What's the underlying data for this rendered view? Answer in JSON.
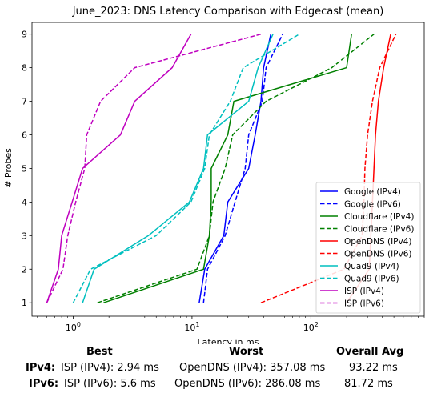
{
  "chart_data": {
    "type": "line",
    "title": "June_2023: DNS Latency Comparison with Edgecast (mean)",
    "xlabel": "Latency in ms",
    "ylabel": "# Probes",
    "xscale": "log",
    "xlim": [
      0.45,
      900
    ],
    "ylim": [
      0.6,
      9.35
    ],
    "yticks": [
      "1",
      "2",
      "3",
      "4",
      "5",
      "6",
      "7",
      "8",
      "9"
    ],
    "xticks": [
      {
        "value": 1,
        "base": "10",
        "exp": "0"
      },
      {
        "value": 10,
        "base": "10",
        "exp": "1"
      },
      {
        "value": 100,
        "base": "10",
        "exp": "2"
      }
    ],
    "legend_position": "lower-right",
    "grid": false,
    "series": [
      {
        "name": "Google (IPv4)",
        "color": "#0000ff",
        "dash": "solid",
        "points": [
          [
            11.5,
            1
          ],
          [
            12.8,
            2
          ],
          [
            18.5,
            3
          ],
          [
            20,
            4
          ],
          [
            30,
            5
          ],
          [
            34,
            6
          ],
          [
            38,
            7
          ],
          [
            40,
            8
          ],
          [
            46,
            9
          ]
        ]
      },
      {
        "name": "Google (IPv6)",
        "color": "#0000ff",
        "dash": "dashed",
        "points": [
          [
            12.5,
            1
          ],
          [
            13.5,
            2
          ],
          [
            19,
            3
          ],
          [
            23,
            4
          ],
          [
            28,
            5
          ],
          [
            30,
            6
          ],
          [
            39,
            7
          ],
          [
            42,
            8
          ],
          [
            58,
            9
          ]
        ]
      },
      {
        "name": "Cloudflare (IPv4)",
        "color": "#008000",
        "dash": "solid",
        "points": [
          [
            1.8,
            1
          ],
          [
            12.5,
            2
          ],
          [
            14,
            3
          ],
          [
            14.5,
            4
          ],
          [
            14.5,
            5
          ],
          [
            20,
            6
          ],
          [
            22.5,
            7
          ],
          [
            200,
            8
          ],
          [
            220,
            9
          ]
        ]
      },
      {
        "name": "Cloudflare (IPv6)",
        "color": "#008000",
        "dash": "dashed",
        "points": [
          [
            1.6,
            1
          ],
          [
            11,
            2
          ],
          [
            14,
            3
          ],
          [
            15,
            4
          ],
          [
            19,
            5
          ],
          [
            22,
            6
          ],
          [
            42,
            7
          ],
          [
            150,
            8
          ],
          [
            340,
            9
          ]
        ]
      },
      {
        "name": "OpenDNS (IPv4)",
        "color": "#ff0000",
        "dash": "solid",
        "points": [
          [
            200,
            1
          ],
          [
            310,
            2
          ],
          [
            320,
            3
          ],
          [
            330,
            4
          ],
          [
            340,
            5
          ],
          [
            350,
            6
          ],
          [
            370,
            7
          ],
          [
            410,
            8
          ],
          [
            470,
            9
          ]
        ]
      },
      {
        "name": "OpenDNS (IPv6)",
        "color": "#ff0000",
        "dash": "dashed",
        "points": [
          [
            38,
            1
          ],
          [
            190,
            2
          ],
          [
            270,
            3
          ],
          [
            280,
            4
          ],
          [
            285,
            5
          ],
          [
            300,
            6
          ],
          [
            330,
            7
          ],
          [
            380,
            8
          ],
          [
            520,
            9
          ]
        ]
      },
      {
        "name": "Quad9 (IPv4)",
        "color": "#00bfbf",
        "dash": "solid",
        "points": [
          [
            1.2,
            1
          ],
          [
            1.5,
            2
          ],
          [
            4.3,
            3
          ],
          [
            9.5,
            4
          ],
          [
            12.5,
            5
          ],
          [
            13.5,
            6
          ],
          [
            30,
            7
          ],
          [
            36,
            8
          ],
          [
            48,
            9
          ]
        ]
      },
      {
        "name": "Quad9 (IPv6)",
        "color": "#00bfbf",
        "dash": "dashed",
        "points": [
          [
            1.0,
            1
          ],
          [
            1.4,
            2
          ],
          [
            5,
            3
          ],
          [
            9.8,
            4
          ],
          [
            12.8,
            5
          ],
          [
            14,
            6
          ],
          [
            21,
            7
          ],
          [
            27,
            8
          ],
          [
            80,
            9
          ]
        ]
      },
      {
        "name": "ISP (IPv4)",
        "color": "#bf00bf",
        "dash": "solid",
        "points": [
          [
            0.6,
            1
          ],
          [
            0.75,
            2
          ],
          [
            0.8,
            3
          ],
          [
            0.98,
            4
          ],
          [
            1.2,
            5
          ],
          [
            2.5,
            6
          ],
          [
            3.3,
            7
          ],
          [
            6.8,
            8
          ],
          [
            9.8,
            9
          ]
        ]
      },
      {
        "name": "ISP (IPv6)",
        "color": "#bf00bf",
        "dash": "dashed",
        "points": [
          [
            0.6,
            1
          ],
          [
            0.82,
            2
          ],
          [
            0.9,
            3
          ],
          [
            1.05,
            4
          ],
          [
            1.25,
            5
          ],
          [
            1.3,
            6
          ],
          [
            1.7,
            7
          ],
          [
            3.3,
            8
          ],
          [
            38,
            9
          ]
        ]
      }
    ]
  },
  "stats": {
    "headers": {
      "best": "Best",
      "worst": "Worst",
      "avg": "Overall Avg"
    },
    "rows": [
      {
        "label": "IPv4",
        "best_name": "ISP (IPv4):",
        "best_value": "2.94 ms",
        "worst_name": "OpenDNS (IPv4):",
        "worst_value": "357.08 ms",
        "avg": "93.22 ms"
      },
      {
        "label": "IPv6",
        "best_name": "ISP (IPv6):",
        "best_value": "5.6 ms",
        "worst_name": "OpenDNS (IPv6):",
        "worst_value": "286.08 ms",
        "avg": "81.72 ms"
      }
    ]
  }
}
